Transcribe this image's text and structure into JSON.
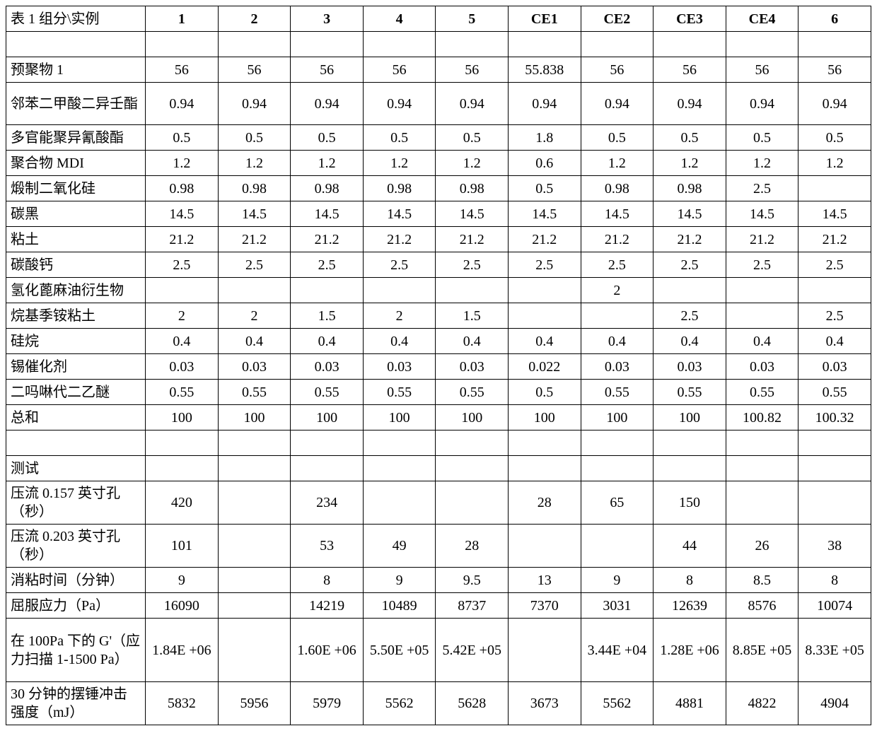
{
  "table": {
    "header_label": "表 1 组分\\实例",
    "columns": [
      "1",
      "2",
      "3",
      "4",
      "5",
      "CE1",
      "CE2",
      "CE3",
      "CE4",
      "6"
    ],
    "rows": [
      {
        "label": "",
        "values": [
          "",
          "",
          "",
          "",
          "",
          "",
          "",
          "",
          "",
          ""
        ]
      },
      {
        "label": "预聚物 1",
        "values": [
          "56",
          "56",
          "56",
          "56",
          "56",
          "55.838",
          "56",
          "56",
          "56",
          "56"
        ]
      },
      {
        "label": "邻苯二甲酸二异壬酯",
        "values": [
          "0.94",
          "0.94",
          "0.94",
          "0.94",
          "0.94",
          "0.94",
          "0.94",
          "0.94",
          "0.94",
          "0.94"
        ],
        "tall": true
      },
      {
        "label": "多官能聚异氰酸酯",
        "values": [
          "0.5",
          "0.5",
          "0.5",
          "0.5",
          "0.5",
          "1.8",
          "0.5",
          "0.5",
          "0.5",
          "0.5"
        ]
      },
      {
        "label": "聚合物 MDI",
        "values": [
          "1.2",
          "1.2",
          "1.2",
          "1.2",
          "1.2",
          "0.6",
          "1.2",
          "1.2",
          "1.2",
          "1.2"
        ]
      },
      {
        "label": "煅制二氧化硅",
        "values": [
          "0.98",
          "0.98",
          "0.98",
          "0.98",
          "0.98",
          "0.5",
          "0.98",
          "0.98",
          "2.5",
          ""
        ]
      },
      {
        "label": "碳黑",
        "values": [
          "14.5",
          "14.5",
          "14.5",
          "14.5",
          "14.5",
          "14.5",
          "14.5",
          "14.5",
          "14.5",
          "14.5"
        ]
      },
      {
        "label": "粘土",
        "values": [
          "21.2",
          "21.2",
          "21.2",
          "21.2",
          "21.2",
          "21.2",
          "21.2",
          "21.2",
          "21.2",
          "21.2"
        ]
      },
      {
        "label": "碳酸钙",
        "values": [
          "2.5",
          "2.5",
          "2.5",
          "2.5",
          "2.5",
          "2.5",
          "2.5",
          "2.5",
          "2.5",
          "2.5"
        ]
      },
      {
        "label": "氢化蓖麻油衍生物",
        "values": [
          "",
          "",
          "",
          "",
          "",
          "",
          "2",
          "",
          "",
          ""
        ]
      },
      {
        "label": "烷基季铵粘土",
        "values": [
          "2",
          "2",
          "1.5",
          "2",
          "1.5",
          "",
          "",
          "2.5",
          "",
          "2.5"
        ]
      },
      {
        "label": "硅烷",
        "values": [
          "0.4",
          "0.4",
          "0.4",
          "0.4",
          "0.4",
          "0.4",
          "0.4",
          "0.4",
          "0.4",
          "0.4"
        ]
      },
      {
        "label": "锡催化剂",
        "values": [
          "0.03",
          "0.03",
          "0.03",
          "0.03",
          "0.03",
          "0.022",
          "0.03",
          "0.03",
          "0.03",
          "0.03"
        ]
      },
      {
        "label": "二吗啉代二乙醚",
        "values": [
          "0.55",
          "0.55",
          "0.55",
          "0.55",
          "0.55",
          "0.5",
          "0.55",
          "0.55",
          "0.55",
          "0.55"
        ]
      },
      {
        "label": "总和",
        "values": [
          "100",
          "100",
          "100",
          "100",
          "100",
          "100",
          "100",
          "100",
          "100.82",
          "100.32"
        ]
      },
      {
        "label": "",
        "values": [
          "",
          "",
          "",
          "",
          "",
          "",
          "",
          "",
          "",
          ""
        ]
      },
      {
        "label": "测试",
        "values": [
          "",
          "",
          "",
          "",
          "",
          "",
          "",
          "",
          "",
          ""
        ]
      },
      {
        "label": "压流 0.157 英寸孔（秒）",
        "values": [
          "420",
          "",
          "234",
          "",
          "",
          "28",
          "65",
          "150",
          "",
          ""
        ],
        "tall": true
      },
      {
        "label": "压流 0.203 英寸孔（秒）",
        "values": [
          "101",
          "",
          "53",
          "49",
          "28",
          "",
          "",
          "44",
          "26",
          "38"
        ],
        "tall": true
      },
      {
        "label": "消粘时间（分钟）",
        "values": [
          "9",
          "",
          "8",
          "9",
          "9.5",
          "13",
          "9",
          "8",
          "8.5",
          "8"
        ]
      },
      {
        "label": "屈服应力（Pa）",
        "values": [
          "16090",
          "",
          "14219",
          "10489",
          "8737",
          "7370",
          "3031",
          "12639",
          "8576",
          "10074"
        ]
      },
      {
        "label": "在 100Pa 下的 G'（应力扫描 1-1500 Pa）",
        "values": [
          "1.84E +06",
          "",
          "1.60E +06",
          "5.50E +05",
          "5.42E +05",
          "",
          "3.44E +04",
          "1.28E +06",
          "8.85E +05",
          "8.33E +05"
        ],
        "vtall": true
      },
      {
        "label": "30 分钟的摆锤冲击强度（mJ）",
        "values": [
          "5832",
          "5956",
          "5979",
          "5562",
          "5628",
          "3673",
          "5562",
          "4881",
          "4822",
          "4904"
        ],
        "tall": true
      }
    ]
  }
}
